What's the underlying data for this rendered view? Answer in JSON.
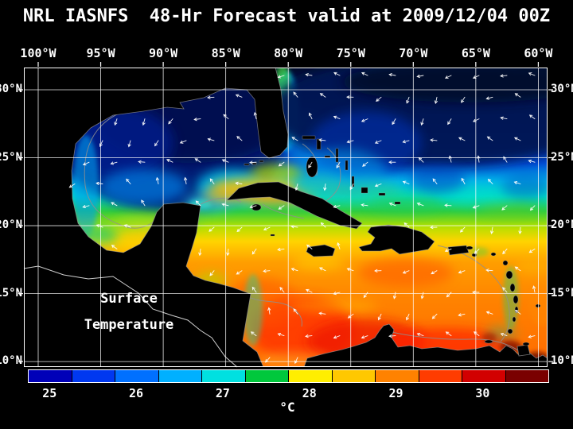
{
  "title": "NRL IASNFS  48-Hr Forecast valid at 2009/12/04 00Z",
  "caption": {
    "line1": "Surface",
    "line2": "Temperature"
  },
  "axes": {
    "lon_labels": [
      "100°W",
      "95°W",
      "90°W",
      "85°W",
      "80°W",
      "75°W",
      "70°W",
      "65°W",
      "60°W"
    ],
    "lat_labels": [
      "30°N",
      "25°N",
      "20°N",
      "15°N",
      "10°N"
    ]
  },
  "colorbar": {
    "unit": "°C",
    "tick_labels": [
      "25",
      "26",
      "27",
      "28",
      "29",
      "30"
    ],
    "segment_colors": [
      "#0000b8",
      "#0038f0",
      "#0070ff",
      "#00b0ff",
      "#00e0e0",
      "#00c83c",
      "#ffee00",
      "#ffc800",
      "#ff8200",
      "#ff3c00",
      "#d20000",
      "#7a0000"
    ]
  },
  "chart_data": {
    "type": "heatmap",
    "title": "NRL IASNFS  48-Hr Forecast valid at 2009/12/04 00Z",
    "variable": "Surface Temperature",
    "unit": "°C",
    "lon_axis_deg_w": [
      100,
      95,
      90,
      85,
      80,
      75,
      70,
      65,
      60
    ],
    "lat_axis_deg_n": [
      30,
      25,
      20,
      15,
      10
    ],
    "colorbar_ticks_c": [
      25,
      26,
      27,
      28,
      29,
      30
    ],
    "regions_estimated_c": {
      "atlantic_north_of_27n": "<=25",
      "gulf_of_mexico": "25-26.5",
      "florida_straits_and_bahamas": "26-28",
      "northwest_caribbean": "28-29",
      "central_and_eastern_caribbean": "28.5-29.5",
      "southern_caribbean_coast": "29.5-30.5"
    },
    "overlays": [
      "surface current vectors (white arrows)",
      "bathymetry contours (gray)",
      "5-degree lat/lon grid (white)"
    ]
  }
}
